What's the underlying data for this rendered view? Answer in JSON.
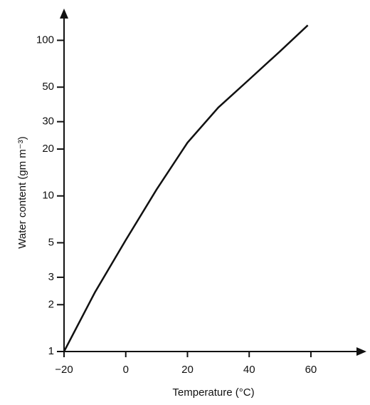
{
  "chart_data": {
    "type": "line",
    "x_label": "Temperature (°C)",
    "y_label": "Water content (gm m⁻³)",
    "x": [
      -20,
      -10,
      0,
      10,
      20,
      30,
      40,
      50,
      59
    ],
    "values": [
      1,
      2.4,
      5.2,
      11,
      22,
      37,
      56,
      85,
      125
    ],
    "color": "#111111",
    "log_y": true,
    "xlim": [
      -20,
      78
    ],
    "ylim": [
      1,
      160
    ],
    "xticks": [
      {
        "value": -20,
        "label": "−20"
      },
      0,
      20,
      40,
      60
    ],
    "yticks": [
      1,
      2,
      3,
      5,
      10,
      20,
      30,
      50,
      100
    ]
  }
}
